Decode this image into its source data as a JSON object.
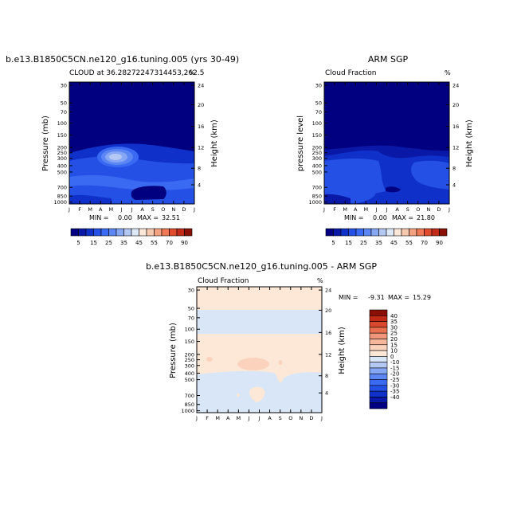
{
  "colors": {
    "levels_abs": [
      "#000080",
      "#0a18a8",
      "#0f31c9",
      "#2450e6",
      "#3a6af2",
      "#5b86f4",
      "#86a7f4",
      "#b4c8f3",
      "#dde7f6",
      "#fbe7d9",
      "#f7c8ae",
      "#f4a27f",
      "#ee7954",
      "#e04b2d",
      "#c02a17",
      "#8a0f06"
    ],
    "levels_diff": [
      "#000080",
      "#0a18a8",
      "#0f31c9",
      "#2450e6",
      "#3a6af2",
      "#5b86f4",
      "#86a7f4",
      "#b4c8f3",
      "#d8e6f7",
      "#fde8d8",
      "#fbd3bd",
      "#f7b79c",
      "#f1967a",
      "#e8704f",
      "#d9482d",
      "#c02a17",
      "#8a0f06"
    ]
  },
  "chart_data": [
    {
      "type": "heatmap",
      "title": "b.e13.B1850C5CN.ne120_g16.tuning.005 (yrs 30-49)",
      "subtitle": "CLOUD at 36.28272247314453,262.5",
      "corner_label": "%",
      "ylabel": "Pressure (mb)",
      "y2label": "Height (km)",
      "x_ticks": [
        "J",
        "F",
        "M",
        "A",
        "M",
        "J",
        "J",
        "A",
        "S",
        "O",
        "N",
        "D",
        "J"
      ],
      "y_ticks": [
        "30",
        "50",
        "70",
        "100",
        "150",
        "200",
        "250",
        "300",
        "400",
        "500",
        "700",
        "850",
        "1000"
      ],
      "y2_ticks": [
        "24",
        "20",
        "16",
        "12",
        "8",
        "4"
      ],
      "stats": {
        "min_label": "MIN =",
        "min": "0.00",
        "max_label": "MAX =",
        "max": "32.51"
      },
      "colorbar_labels": [
        "5",
        "15",
        "25",
        "35",
        "45",
        "55",
        "70",
        "90"
      ]
    },
    {
      "type": "heatmap",
      "title": "ARM SGP",
      "subtitle": "Cloud Fraction",
      "corner_label": "%",
      "ylabel": "pressure level",
      "y2label": "Height (km)",
      "x_ticks": [
        "J",
        "F",
        "M",
        "A",
        "M",
        "J",
        "J",
        "A",
        "S",
        "O",
        "N",
        "D",
        "J"
      ],
      "y_ticks": [
        "30",
        "50",
        "70",
        "100",
        "150",
        "200",
        "250",
        "300",
        "400",
        "500",
        "700",
        "850",
        "1000"
      ],
      "y2_ticks": [
        "24",
        "20",
        "16",
        "12",
        "8",
        "4"
      ],
      "stats": {
        "min_label": "MIN =",
        "min": "0.00",
        "max_label": "MAX =",
        "max": "21.80"
      },
      "colorbar_labels": [
        "5",
        "15",
        "25",
        "35",
        "45",
        "55",
        "70",
        "90"
      ]
    },
    {
      "type": "heatmap",
      "title": "b.e13.B1850C5CN.ne120_g16.tuning.005 - ARM SGP",
      "subtitle": "Cloud Fraction",
      "corner_label": "%",
      "ylabel": "Pressure (mb)",
      "y2label": "Height (km)",
      "x_ticks": [
        "J",
        "F",
        "M",
        "A",
        "M",
        "J",
        "J",
        "A",
        "S",
        "O",
        "N",
        "D",
        "J"
      ],
      "y_ticks": [
        "30",
        "50",
        "70",
        "100",
        "150",
        "200",
        "250",
        "300",
        "400",
        "500",
        "700",
        "850",
        "1000"
      ],
      "y2_ticks": [
        "24",
        "20",
        "16",
        "12",
        "8",
        "4"
      ],
      "stats": {
        "min_label": "MIN =",
        "min": "-9.31",
        "max_label": "MAX =",
        "max": "15.29"
      },
      "colorbar_labels": [
        "40",
        "35",
        "30",
        "25",
        "20",
        "15",
        "10",
        "0",
        "-10",
        "-15",
        "-20",
        "-25",
        "-30",
        "-35",
        "-40"
      ]
    }
  ]
}
